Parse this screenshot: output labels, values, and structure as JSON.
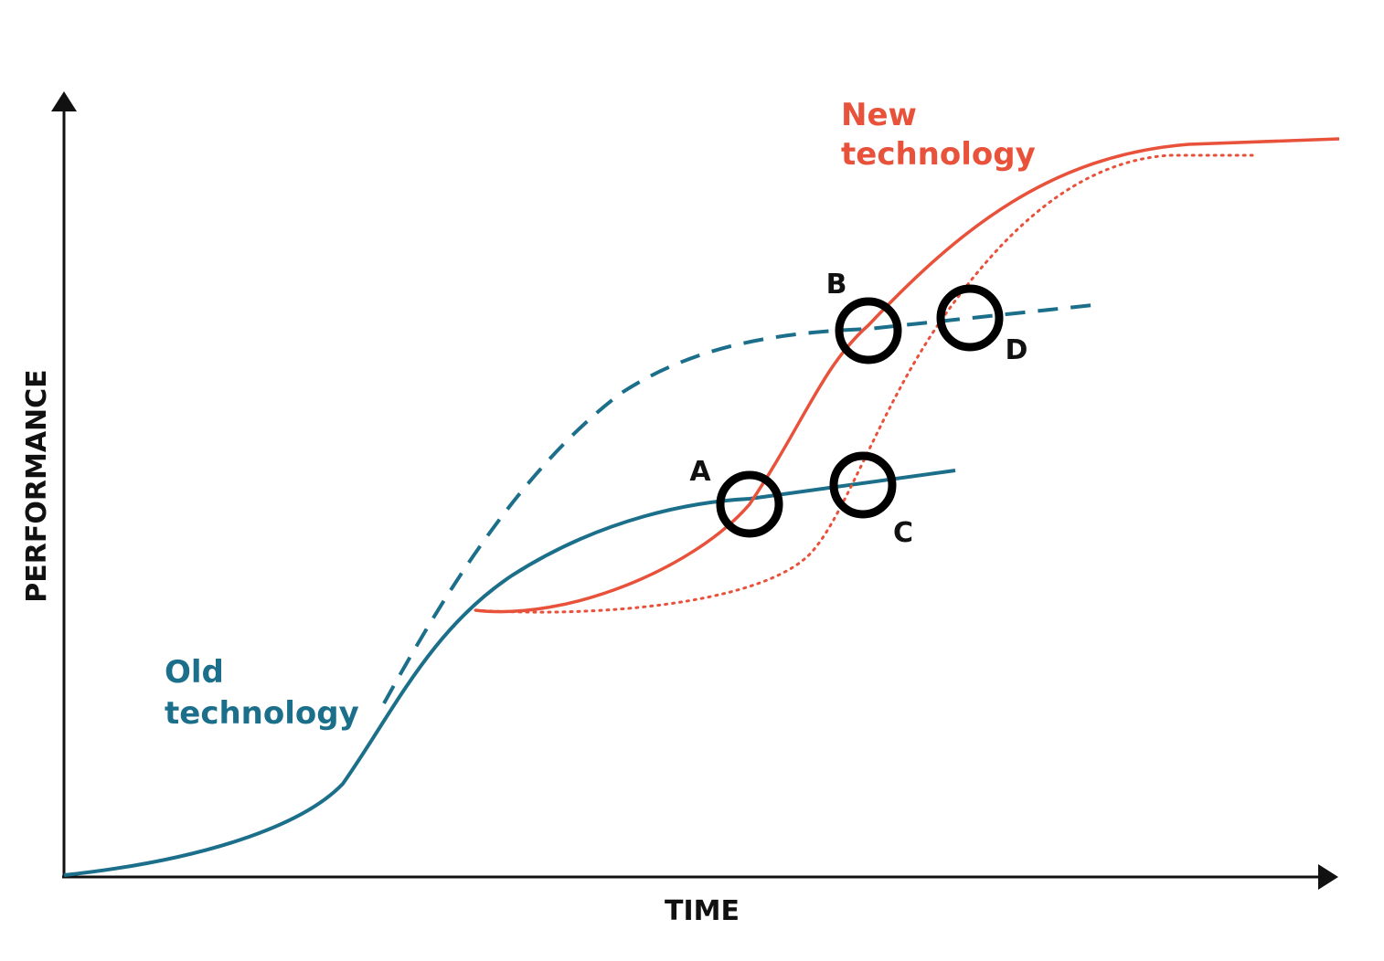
{
  "axes": {
    "x_label": "TIME",
    "y_label": "PERFORMANCE"
  },
  "curves": [
    {
      "label_lines": [
        "New",
        "technology"
      ]
    },
    {
      "label_lines": [
        "Old",
        "technology"
      ]
    }
  ],
  "points": [
    {
      "label": "A"
    },
    {
      "label": "B"
    },
    {
      "label": "C"
    },
    {
      "label": "D"
    }
  ]
}
